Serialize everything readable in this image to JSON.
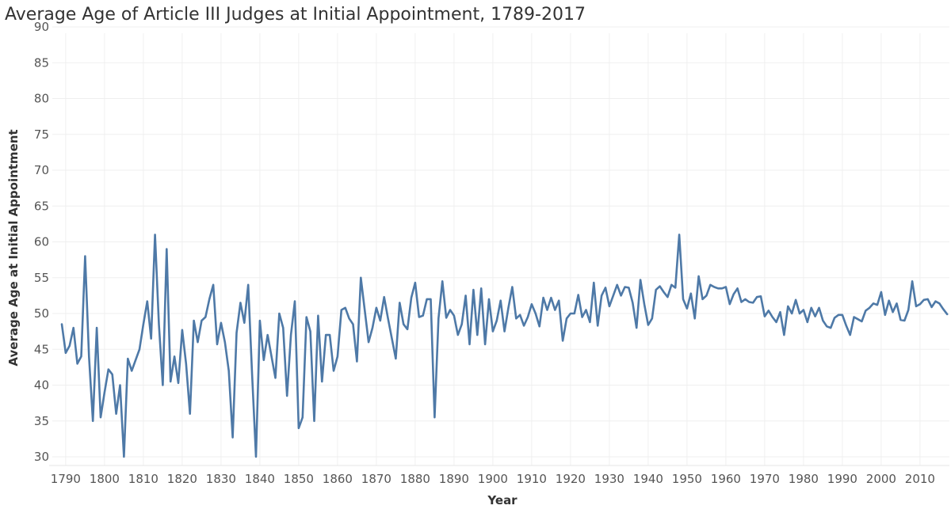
{
  "chart_data": {
    "type": "line",
    "title": "Average Age of Article III Judges at Initial Appointment, 1789-2017",
    "xlabel": "Year",
    "ylabel": "Average Age at Initial Appointment",
    "xlim": [
      1789,
      2017
    ],
    "ylim": [
      30,
      90
    ],
    "x_ticks": [
      "1790",
      "1800",
      "1810",
      "1820",
      "1830",
      "1840",
      "1850",
      "1860",
      "1870",
      "1880",
      "1890",
      "1900",
      "1910",
      "1920",
      "1930",
      "1940",
      "1950",
      "1960",
      "1970",
      "1980",
      "1990",
      "2000",
      "2010"
    ],
    "y_ticks": [
      "30",
      "35",
      "40",
      "45",
      "50",
      "55",
      "60",
      "65",
      "70",
      "75",
      "80",
      "85",
      "90"
    ],
    "grid": true,
    "line_color": "#4e79a7",
    "x": [
      1789,
      1790,
      1791,
      1792,
      1793,
      1794,
      1795,
      1796,
      1797,
      1798,
      1799,
      1800,
      1801,
      1802,
      1803,
      1804,
      1805,
      1806,
      1807,
      1808,
      1809,
      1810,
      1811,
      1812,
      1813,
      1814,
      1815,
      1816,
      1817,
      1818,
      1819,
      1820,
      1821,
      1822,
      1823,
      1824,
      1825,
      1826,
      1827,
      1828,
      1829,
      1830,
      1831,
      1832,
      1833,
      1834,
      1835,
      1836,
      1837,
      1838,
      1839,
      1840,
      1841,
      1842,
      1843,
      1844,
      1845,
      1846,
      1847,
      1848,
      1849,
      1850,
      1851,
      1852,
      1853,
      1854,
      1855,
      1856,
      1857,
      1858,
      1859,
      1860,
      1861,
      1862,
      1863,
      1864,
      1865,
      1866,
      1867,
      1868,
      1869,
      1870,
      1871,
      1872,
      1873,
      1874,
      1875,
      1876,
      1877,
      1878,
      1879,
      1880,
      1881,
      1882,
      1883,
      1884,
      1885,
      1886,
      1887,
      1888,
      1889,
      1890,
      1891,
      1892,
      1893,
      1894,
      1895,
      1896,
      1897,
      1898,
      1899,
      1900,
      1901,
      1902,
      1903,
      1904,
      1905,
      1906,
      1907,
      1908,
      1909,
      1910,
      1911,
      1912,
      1913,
      1914,
      1915,
      1916,
      1917,
      1918,
      1919,
      1920,
      1921,
      1922,
      1923,
      1924,
      1925,
      1926,
      1927,
      1928,
      1929,
      1930,
      1931,
      1932,
      1933,
      1934,
      1935,
      1936,
      1937,
      1938,
      1939,
      1940,
      1941,
      1942,
      1943,
      1944,
      1945,
      1946,
      1947,
      1948,
      1949,
      1950,
      1951,
      1952,
      1953,
      1954,
      1955,
      1956,
      1957,
      1958,
      1959,
      1960,
      1961,
      1962,
      1963,
      1964,
      1965,
      1966,
      1967,
      1968,
      1969,
      1970,
      1971,
      1972,
      1973,
      1974,
      1975,
      1976,
      1977,
      1978,
      1979,
      1980,
      1981,
      1982,
      1983,
      1984,
      1985,
      1986,
      1987,
      1988,
      1989,
      1990,
      1991,
      1992,
      1993,
      1994,
      1995,
      1996,
      1997,
      1998,
      1999,
      2000,
      2001,
      2002,
      2003,
      2004,
      2005,
      2006,
      2007,
      2008,
      2009,
      2010,
      2011,
      2012,
      2013,
      2014,
      2015,
      2016,
      2017
    ],
    "y": [
      48.5,
      44.5,
      45.5,
      48,
      43,
      44,
      58,
      44,
      35,
      48,
      35.5,
      39,
      42.2,
      41.5,
      36,
      40,
      30,
      43.7,
      42,
      43.5,
      45,
      48.5,
      51.7,
      46.5,
      61,
      48.5,
      40,
      59,
      40.5,
      44,
      40.3,
      47.7,
      43,
      36,
      49,
      46,
      49,
      49.5,
      52,
      54,
      45.7,
      48.7,
      46,
      42,
      32.7,
      47.3,
      51.5,
      48.7,
      54,
      41.5,
      30,
      49,
      43.5,
      47,
      44,
      41,
      50,
      48,
      38.5,
      47,
      51.7,
      34,
      35.5,
      49.5,
      47.5,
      35,
      49.7,
      40.5,
      47,
      47,
      42,
      44,
      50.5,
      50.8,
      49.3,
      48.5,
      43.3,
      55,
      50.5,
      46,
      48,
      50.8,
      49,
      52.3,
      49.3,
      46.5,
      43.7,
      51.5,
      48.5,
      47.8,
      52.2,
      54.3,
      49.5,
      49.7,
      52,
      52,
      35.5,
      49.3,
      54.5,
      49.4,
      50.5,
      49.7,
      47,
      48.5,
      52.5,
      45.7,
      53.3,
      47,
      53.5,
      45.7,
      52,
      47.5,
      49,
      51.8,
      47.5,
      50.8,
      53.7,
      49.3,
      49.8,
      48.3,
      49.5,
      51.3,
      50,
      48.2,
      52.2,
      50.5,
      52.2,
      50.5,
      51.8,
      46.2,
      49.3,
      50,
      50,
      52.6,
      49.5,
      50.5,
      48.8,
      54.3,
      48.3,
      52.5,
      53.6,
      51,
      52.5,
      54,
      52.5,
      53.7,
      53.6,
      51.5,
      48,
      54.7,
      51.3,
      48.4,
      49.3,
      53.3,
      53.8,
      53,
      52.3,
      54,
      53.6,
      61,
      52,
      50.7,
      52.8,
      49.3,
      55.2,
      52,
      52.5,
      54,
      53.7,
      53.5,
      53.5,
      53.7,
      51.3,
      52.7,
      53.5,
      51.6,
      52,
      51.6,
      51.5,
      52.3,
      52.4,
      49.6,
      50.4,
      49.5,
      48.8,
      50.2,
      47,
      51,
      50,
      51.9,
      50,
      50.5,
      48.8,
      50.8,
      49.6,
      50.8,
      49,
      48.2,
      48,
      49.4,
      49.8,
      49.8,
      48.3,
      47,
      49.5,
      49.2,
      48.9,
      50.4,
      50.8,
      51.4,
      51.2,
      53,
      49.8,
      51.8,
      50.2,
      51.4,
      49.1,
      49,
      50.5,
      54.5,
      51,
      51.3,
      51.9,
      52,
      50.9,
      51.7,
      51.4,
      50.6,
      49.9
    ]
  }
}
